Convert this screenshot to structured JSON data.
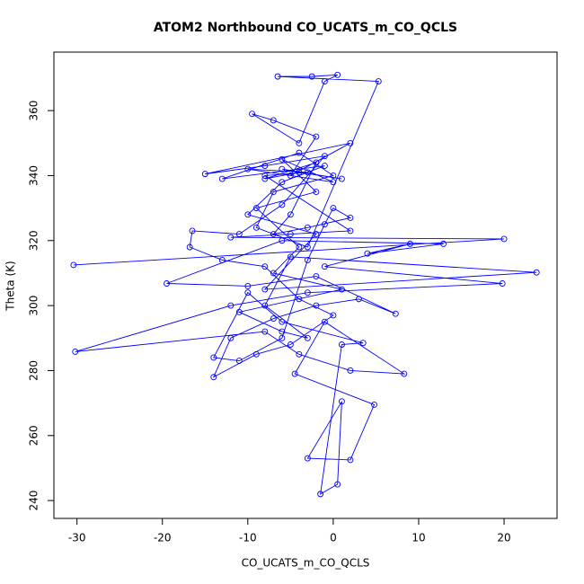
{
  "chart_data": {
    "type": "line",
    "title": "ATOM2 Northbound CO_UCATS_m_CO_QCLS",
    "x_label": "CO_UCATS_m_CO_QCLS",
    "y_label": "Theta (K)",
    "color": "#0000ff",
    "markers": true,
    "grid": false,
    "xlim": [
      -32.7,
      26.2
    ],
    "ylim": [
      234.5,
      378
    ],
    "xticks": [
      -30,
      -20,
      -10,
      0,
      10,
      20
    ],
    "yticks": [
      240,
      260,
      280,
      300,
      320,
      340,
      360
    ],
    "x": [
      -30.4,
      20,
      -12,
      -5,
      2,
      -8,
      -3,
      -10,
      0,
      -6,
      -2,
      -9,
      -4,
      -7,
      1,
      -11,
      -6,
      -3,
      -8,
      -5,
      23.8,
      -8,
      -2,
      -10,
      -6,
      -1,
      -13,
      -4,
      0,
      -7,
      -9,
      -3,
      5.3,
      -6.5,
      -2.5,
      0.5,
      -1,
      -4,
      -9.5,
      -7,
      -2,
      -5,
      2,
      -15,
      -8,
      -1,
      -6,
      -11,
      -16.5,
      -16.8,
      -13,
      -8,
      -4,
      0,
      -5,
      -9,
      -14,
      -12,
      -7,
      -2,
      3,
      7.3,
      -2,
      -10,
      -19.5,
      -6,
      12.9,
      4,
      9,
      -1,
      19.8,
      -3,
      -12,
      -30.2,
      -8,
      -4,
      2,
      8.3,
      -1,
      -4.5,
      4.8,
      2,
      -3,
      1,
      0.5,
      -1.5,
      1,
      3.5,
      -6,
      -10,
      -14,
      -11,
      -6,
      -3,
      -1,
      0,
      2,
      -3,
      -7,
      -5,
      -2,
      -8,
      -4,
      1,
      -6
    ],
    "values": [
      312.5,
      320.5,
      321,
      322,
      323,
      340,
      341,
      342,
      338,
      345,
      335,
      330,
      318,
      310,
      305,
      298,
      292,
      290,
      300,
      315,
      310.2,
      305,
      322,
      328,
      338,
      343,
      339,
      347,
      340,
      335,
      324,
      318,
      369,
      370.5,
      370.5,
      371,
      369,
      350,
      359,
      357,
      352,
      340,
      350,
      340.5,
      343,
      346,
      331,
      322,
      323,
      318,
      314,
      312,
      302,
      297,
      288,
      285,
      278,
      290,
      296,
      300,
      302,
      297.5,
      309,
      306,
      306.8,
      320,
      319,
      316,
      319,
      312,
      306.8,
      304,
      300,
      285.8,
      292,
      285,
      280,
      279,
      295,
      279,
      269.5,
      252.5,
      253,
      270.5,
      245,
      242,
      288,
      288.5,
      295,
      304,
      284,
      283,
      290,
      314,
      325,
      330,
      327,
      324,
      322,
      328,
      344,
      339,
      341,
      339,
      342
    ]
  }
}
